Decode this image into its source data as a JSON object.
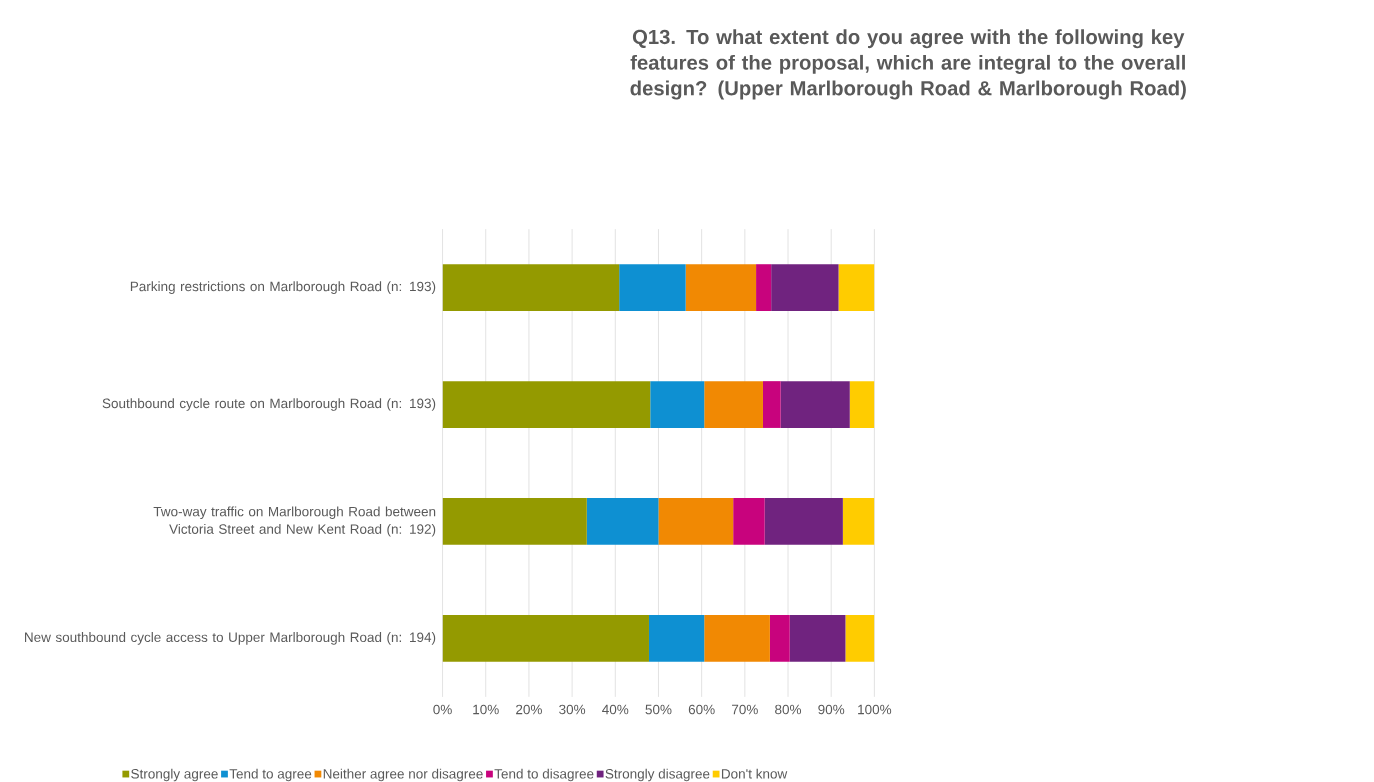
{
  "chart_data": {
    "type": "bar",
    "orientation": "horizontal",
    "stacked": true,
    "title": "Q13. To what extent do you agree with the following key features of the proposal, which are integral to the overall design? (Upper Marlborough Road & Marlborough Road)",
    "categories": [
      "Parking restrictions on Marlborough Road (n: 193)",
      "Southbound cycle route on Marlborough Road (n: 193)",
      "Two-way traffic on Marlborough Road between Victoria Street and New Kent Road (n: 192)",
      "New southbound cycle access to Upper Marlborough Road (n: 194)"
    ],
    "series": [
      {
        "name": "Strongly agree",
        "color": "#949a00",
        "values": [
          40.9,
          48.1,
          33.4,
          47.8
        ]
      },
      {
        "name": "Tend to agree",
        "color": "#0e90d2",
        "values": [
          15.4,
          12.5,
          16.6,
          12.8
        ]
      },
      {
        "name": "Neither agree nor disagree",
        "color": "#f18903",
        "values": [
          16.3,
          13.6,
          17.3,
          15.2
        ]
      },
      {
        "name": "Tend to disagree",
        "color": "#c8037d",
        "values": [
          3.5,
          4.1,
          7.3,
          4.6
        ]
      },
      {
        "name": "Strongly disagree",
        "color": "#70237f",
        "values": [
          15.6,
          16.0,
          18.1,
          12.9
        ]
      },
      {
        "name": "Don't know",
        "color": "#ffcc00",
        "values": [
          8.3,
          5.7,
          7.3,
          6.7
        ]
      }
    ],
    "xlim": [
      0,
      100
    ],
    "xticks": [
      {
        "value": 0,
        "label": "0%"
      },
      {
        "value": 10,
        "label": "10%"
      },
      {
        "value": 20,
        "label": "20%"
      },
      {
        "value": 30,
        "label": "30%"
      },
      {
        "value": 40,
        "label": "40%"
      },
      {
        "value": 50,
        "label": "50%"
      },
      {
        "value": 60,
        "label": "60%"
      },
      {
        "value": 70,
        "label": "70%"
      },
      {
        "value": 80,
        "label": "80%"
      },
      {
        "value": 90,
        "label": "90%"
      },
      {
        "value": 100,
        "label": "100%"
      }
    ],
    "grid": "x",
    "legend": "bottom"
  }
}
